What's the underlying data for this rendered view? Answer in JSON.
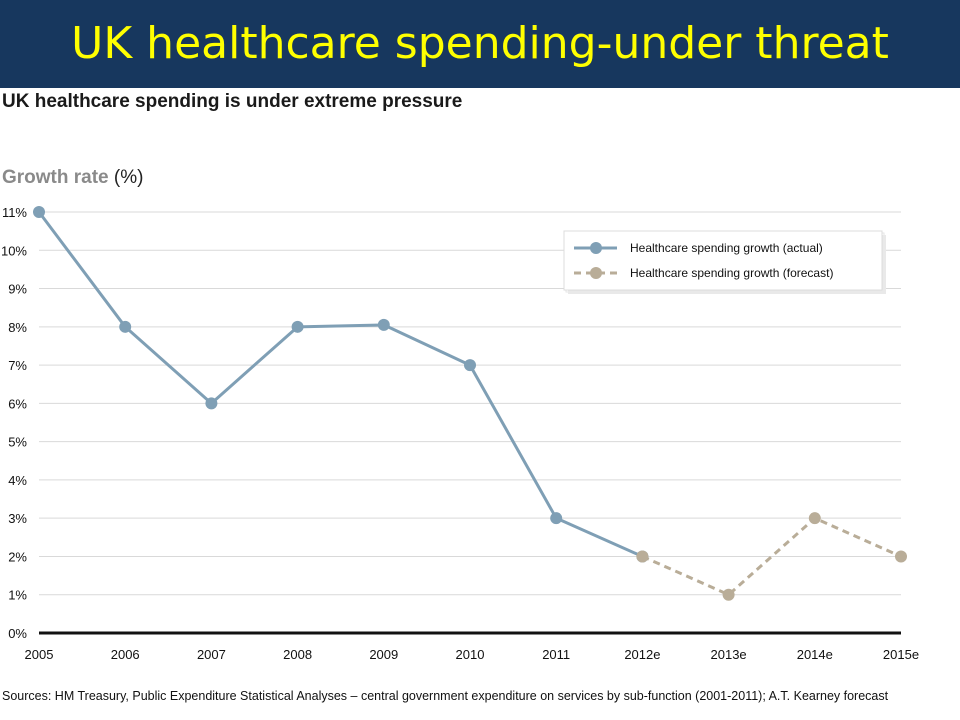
{
  "slide_title": "UK healthcare spending-under threat",
  "chart_title": "UK healthcare spending is under extreme pressure",
  "axis_title": {
    "bold": "Growth rate",
    "unit": "(%)"
  },
  "sources": "Sources: HM Treasury, Public Expenditure Statistical Analyses – central government expenditure on services by sub-function (2001-2011); A.T. Kearney forecast",
  "colors": {
    "banner": "#17375e",
    "title": "#ffff00",
    "actual": "#7f9fb5",
    "forecast": "#b9ad98",
    "grid": "#d9d9d9"
  },
  "chart_data": {
    "type": "line",
    "categories": [
      "2005",
      "2006",
      "2007",
      "2008",
      "2009",
      "2010",
      "2011",
      "2012e",
      "2013e",
      "2014e",
      "2015e"
    ],
    "ylabel": "Growth rate (%)",
    "ylim": [
      0,
      11
    ],
    "yticks": [
      "0%",
      "1%",
      "2%",
      "3%",
      "4%",
      "5%",
      "6%",
      "7%",
      "8%",
      "9%",
      "10%",
      "11%"
    ],
    "grid": true,
    "legend_position": "top-right",
    "series": [
      {
        "name": "Healthcare spending growth (actual)",
        "style": "solid",
        "values": [
          11,
          8,
          6,
          8,
          8.05,
          7,
          3,
          2,
          null,
          null,
          null
        ]
      },
      {
        "name": "Healthcare spending growth (forecast)",
        "style": "dashed",
        "values": [
          null,
          null,
          null,
          null,
          null,
          null,
          null,
          2,
          1,
          3,
          2
        ]
      }
    ]
  }
}
